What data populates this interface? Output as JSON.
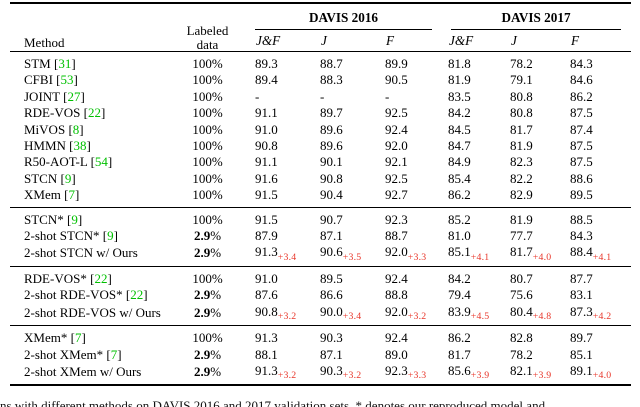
{
  "colors": {
    "citation": "#00c000",
    "gain": "#e8362a"
  },
  "caption": "ns with different methods on DAVIS 2016 and 2017 validation sets. * denotes our reproduced model and",
  "table": {
    "columns": {
      "method_label": "Method",
      "labeled_line1": "Labeled",
      "labeled_line2": "data",
      "groups": [
        {
          "label": "DAVIS 2016",
          "metrics": [
            "J&F",
            "J",
            "F"
          ]
        },
        {
          "label": "DAVIS 2017",
          "metrics": [
            "J&F",
            "J",
            "F"
          ]
        }
      ]
    },
    "sections": [
      {
        "rows": [
          {
            "method": "STM",
            "cite": "31",
            "labeled": [
              {
                "t": "100%",
                "b": false
              }
            ],
            "values": [
              "89.3",
              "88.7",
              "89.9",
              "81.8",
              "78.2",
              "84.3"
            ]
          },
          {
            "method": "CFBI",
            "cite": "53",
            "labeled": [
              {
                "t": "100%",
                "b": false
              }
            ],
            "values": [
              "89.4",
              "88.3",
              "90.5",
              "81.9",
              "79.1",
              "84.6"
            ]
          },
          {
            "method": "JOINT",
            "cite": "27",
            "labeled": [
              {
                "t": "100%",
                "b": false
              }
            ],
            "values": [
              "-",
              "-",
              "-",
              "83.5",
              "80.8",
              "86.2"
            ]
          },
          {
            "method": "RDE-VOS",
            "cite": "22",
            "labeled": [
              {
                "t": "100%",
                "b": false
              }
            ],
            "values": [
              "91.1",
              "89.7",
              "92.5",
              "84.2",
              "80.8",
              "87.5"
            ]
          },
          {
            "method": "MiVOS",
            "cite": "8",
            "labeled": [
              {
                "t": "100%",
                "b": false
              }
            ],
            "values": [
              "91.0",
              "89.6",
              "92.4",
              "84.5",
              "81.7",
              "87.4"
            ]
          },
          {
            "method": "HMMN",
            "cite": "38",
            "labeled": [
              {
                "t": "100%",
                "b": false
              }
            ],
            "values": [
              "90.8",
              "89.6",
              "92.0",
              "84.7",
              "81.9",
              "87.5"
            ]
          },
          {
            "method": "R50-AOT-L",
            "cite": "54",
            "labeled": [
              {
                "t": "100%",
                "b": false
              }
            ],
            "values": [
              "91.1",
              "90.1",
              "92.1",
              "84.9",
              "82.3",
              "87.5"
            ]
          },
          {
            "method": "STCN",
            "cite": "9",
            "labeled": [
              {
                "t": "100%",
                "b": false
              }
            ],
            "values": [
              "91.6",
              "90.8",
              "92.5",
              "85.4",
              "82.2",
              "88.6"
            ]
          },
          {
            "method": "XMem",
            "cite": "7",
            "labeled": [
              {
                "t": "100%",
                "b": false
              }
            ],
            "values": [
              "91.5",
              "90.4",
              "92.7",
              "86.2",
              "82.9",
              "89.5"
            ]
          }
        ]
      },
      {
        "rows": [
          {
            "method": "STCN*",
            "cite": "9",
            "labeled": [
              {
                "t": "100%",
                "b": false
              }
            ],
            "values": [
              "91.5",
              "90.7",
              "92.3",
              "85.2",
              "81.9",
              "88.5"
            ]
          },
          {
            "method": "2-shot STCN*",
            "cite": "9",
            "labeled": [
              {
                "t": "2.9",
                "b": true
              },
              {
                "t": "%",
                "b": false
              }
            ],
            "values": [
              "87.9",
              "87.1",
              "88.7",
              "81.0",
              "77.7",
              "84.3"
            ]
          },
          {
            "method": "2-shot STCN w/ Ours",
            "cite": null,
            "labeled": [
              {
                "t": "2.9",
                "b": true
              },
              {
                "t": "%",
                "b": false
              }
            ],
            "values": [
              "91.3",
              "90.6",
              "92.0",
              "85.1",
              "81.7",
              "88.4"
            ],
            "gains": [
              "+3.4",
              "+3.5",
              "+3.3",
              "+4.1",
              "+4.0",
              "+4.1"
            ]
          }
        ]
      },
      {
        "rows": [
          {
            "method": "RDE-VOS*",
            "cite": "22",
            "labeled": [
              {
                "t": "100%",
                "b": false
              }
            ],
            "values": [
              "91.0",
              "89.5",
              "92.4",
              "84.2",
              "80.7",
              "87.7"
            ]
          },
          {
            "method": "2-shot RDE-VOS*",
            "cite": "22",
            "labeled": [
              {
                "t": "2.9",
                "b": true
              },
              {
                "t": "%",
                "b": false
              }
            ],
            "values": [
              "87.6",
              "86.6",
              "88.8",
              "79.4",
              "75.6",
              "83.1"
            ]
          },
          {
            "method": "2-shot RDE-VOS w/ Ours",
            "cite": null,
            "labeled": [
              {
                "t": "2.9",
                "b": true
              },
              {
                "t": "%",
                "b": false
              }
            ],
            "values": [
              "90.8",
              "90.0",
              "92.0",
              "83.9",
              "80.4",
              "87.3"
            ],
            "gains": [
              "+3.2",
              "+3.4",
              "+3.2",
              "+4.5",
              "+4.8",
              "+4.2"
            ]
          }
        ]
      },
      {
        "rows": [
          {
            "method": "XMem*",
            "cite": "7",
            "labeled": [
              {
                "t": "100%",
                "b": false
              }
            ],
            "values": [
              "91.3",
              "90.3",
              "92.4",
              "86.2",
              "82.8",
              "89.7"
            ]
          },
          {
            "method": "2-shot XMem*",
            "cite": "7",
            "labeled": [
              {
                "t": "2.9",
                "b": true
              },
              {
                "t": "%",
                "b": false
              }
            ],
            "values": [
              "88.1",
              "87.1",
              "89.0",
              "81.7",
              "78.2",
              "85.1"
            ]
          },
          {
            "method": "2-shot XMem w/ Ours",
            "cite": null,
            "labeled": [
              {
                "t": "2.9",
                "b": true
              },
              {
                "t": "%",
                "b": false
              }
            ],
            "values": [
              "91.3",
              "90.3",
              "92.3",
              "85.6",
              "82.1",
              "89.1"
            ],
            "gains": [
              "+3.2",
              "+3.2",
              "+3.3",
              "+3.9",
              "+3.9",
              "+4.0"
            ]
          }
        ]
      }
    ]
  }
}
